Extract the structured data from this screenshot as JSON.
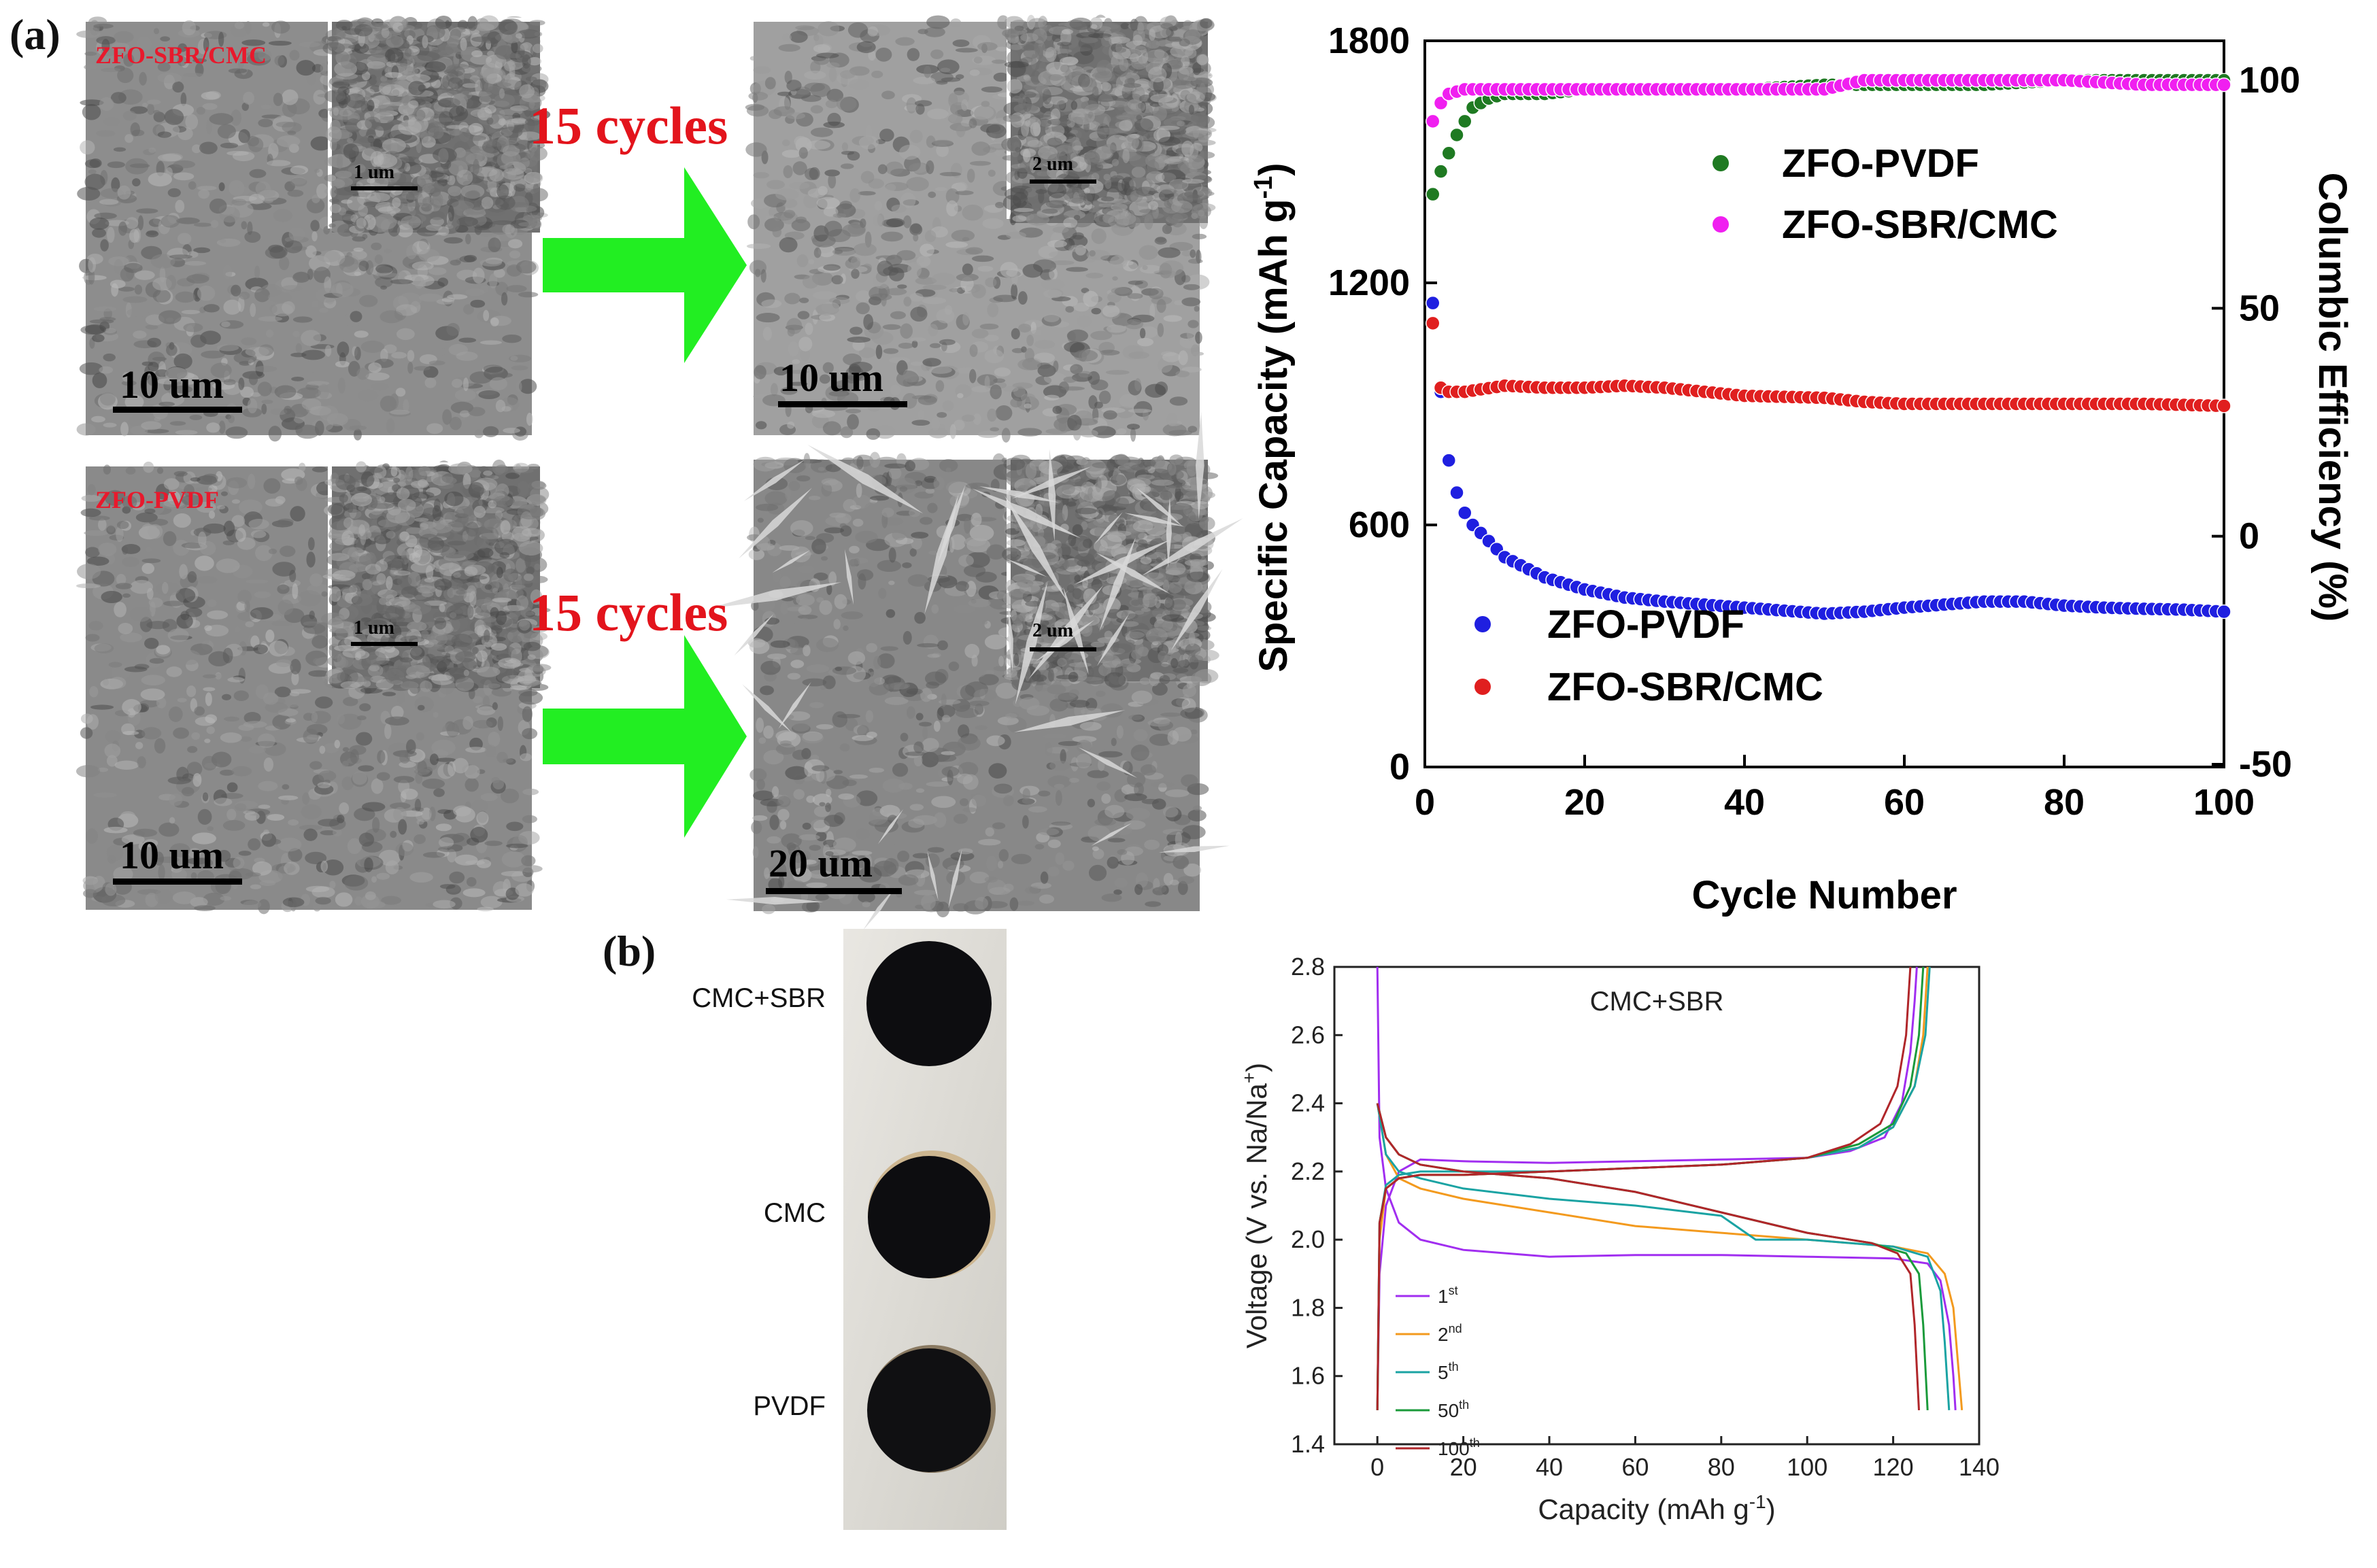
{
  "panel_a_label": "(a)",
  "panel_b_label": "(b)",
  "sem": {
    "top_left": {
      "name": "ZFO-SBR/CMC",
      "scale": "10 um",
      "inset_scale": "1 um"
    },
    "top_right": {
      "scale": "10 um",
      "inset_scale": "2 um"
    },
    "bottom_left": {
      "name": "ZFO-PVDF",
      "scale": "10 um",
      "inset_scale": "1 um"
    },
    "bottom_right": {
      "scale": "20 um",
      "inset_scale": "2 um"
    },
    "arrow_color": "#22ee22",
    "cycles_top": "15 cycles",
    "cycles_bottom": "15 cycles"
  },
  "photo": {
    "labels": [
      "CMC+SBR",
      "CMC",
      "PVDF"
    ]
  },
  "chart_data": [
    {
      "type": "scatter",
      "xlabel": "Cycle Number",
      "ylabel": "Specific Capacity (mAh g",
      "ylabel_sup": "-1",
      "ylabel_end": ")",
      "y2label": "Columbic Efficiency (%)",
      "xlim": [
        0,
        100
      ],
      "ylim": [
        0,
        1800
      ],
      "y2lim": [
        -50,
        110
      ],
      "xticks": [
        0,
        20,
        40,
        60,
        80,
        100
      ],
      "yticks": [
        0,
        600,
        1200,
        1800
      ],
      "y2ticks": [
        -50,
        0,
        50,
        100
      ],
      "legend_upper": [
        "ZFO-PVDF",
        "ZFO-SBR/CMC"
      ],
      "legend_lower": [
        "ZFO-PVDF",
        "ZFO-SBR/CMC"
      ],
      "series": [
        {
          "name": "ZFO-PVDF",
          "axis": "left",
          "color": "#1f1fe0",
          "points": [
            [
              1,
              1150
            ],
            [
              2,
              930
            ],
            [
              3,
              760
            ],
            [
              4,
              680
            ],
            [
              5,
              630
            ],
            [
              6,
              600
            ],
            [
              8,
              560
            ],
            [
              10,
              520
            ],
            [
              15,
              470
            ],
            [
              20,
              440
            ],
            [
              25,
              420
            ],
            [
              30,
              410
            ],
            [
              40,
              395
            ],
            [
              50,
              380
            ],
            [
              55,
              385
            ],
            [
              60,
              395
            ],
            [
              70,
              410
            ],
            [
              75,
              410
            ],
            [
              80,
              400
            ],
            [
              85,
              395
            ],
            [
              90,
              392
            ],
            [
              95,
              390
            ],
            [
              100,
              385
            ]
          ]
        },
        {
          "name": "ZFO-SBR/CMC",
          "axis": "left",
          "color": "#e01f1f",
          "points": [
            [
              1,
              1100
            ],
            [
              2,
              940
            ],
            [
              3,
              930
            ],
            [
              5,
              930
            ],
            [
              10,
              945
            ],
            [
              15,
              940
            ],
            [
              20,
              940
            ],
            [
              25,
              945
            ],
            [
              30,
              940
            ],
            [
              40,
              920
            ],
            [
              50,
              915
            ],
            [
              55,
              905
            ],
            [
              60,
              900
            ],
            [
              70,
              900
            ],
            [
              80,
              900
            ],
            [
              90,
              900
            ],
            [
              100,
              895
            ]
          ]
        },
        {
          "name": "ZFO-PVDF",
          "axis": "right",
          "color": "#1f7a22",
          "points": [
            [
              1,
              75
            ],
            [
              2,
              80
            ],
            [
              3,
              84
            ],
            [
              4,
              88
            ],
            [
              5,
              91
            ],
            [
              6,
              94
            ],
            [
              7,
              95
            ],
            [
              8,
              96
            ],
            [
              10,
              97
            ],
            [
              15,
              97
            ],
            [
              20,
              98
            ],
            [
              30,
              98
            ],
            [
              40,
              98
            ],
            [
              50,
              99
            ],
            [
              60,
              99
            ],
            [
              70,
              99
            ],
            [
              80,
              100
            ],
            [
              90,
              100
            ],
            [
              100,
              100
            ]
          ]
        },
        {
          "name": "ZFO-SBR/CMC",
          "axis": "right",
          "color": "#f01ff0",
          "points": [
            [
              1,
              91
            ],
            [
              2,
              95
            ],
            [
              3,
              97
            ],
            [
              5,
              98
            ],
            [
              10,
              98
            ],
            [
              20,
              98
            ],
            [
              30,
              98
            ],
            [
              40,
              98
            ],
            [
              50,
              98
            ],
            [
              55,
              100
            ],
            [
              60,
              100
            ],
            [
              70,
              100
            ],
            [
              80,
              100
            ],
            [
              90,
              99
            ],
            [
              100,
              99
            ]
          ]
        }
      ]
    },
    {
      "type": "line",
      "title": "CMC+SBR",
      "xlabel": "Capacity (mAh g",
      "xlabel_sup": "-1",
      "xlabel_end": ")",
      "ylabel": "Voltage (V vs. Na/Na",
      "ylabel_sup": "+",
      "ylabel_end": ")",
      "xlim": [
        -10,
        140
      ],
      "ylim": [
        1.4,
        2.8
      ],
      "xticks": [
        0,
        20,
        40,
        60,
        80,
        100,
        120,
        140
      ],
      "yticks": [
        1.4,
        1.6,
        1.8,
        2.0,
        2.2,
        2.4,
        2.6,
        2.8
      ],
      "legend": [
        {
          "base": "1",
          "sup": "st"
        },
        {
          "base": "2",
          "sup": "nd"
        },
        {
          "base": "5",
          "sup": "th"
        },
        {
          "base": "50",
          "sup": "th"
        },
        {
          "base": "100",
          "sup": "th"
        }
      ],
      "series": [
        {
          "name": "1st",
          "color": "#a12ef0",
          "discharge": [
            [
              0,
              2.8
            ],
            [
              0.5,
              2.3
            ],
            [
              2,
              2.15
            ],
            [
              5,
              2.05
            ],
            [
              10,
              2.0
            ],
            [
              20,
              1.97
            ],
            [
              40,
              1.95
            ],
            [
              60,
              1.955
            ],
            [
              80,
              1.955
            ],
            [
              100,
              1.95
            ],
            [
              120,
              1.945
            ],
            [
              128,
              1.93
            ],
            [
              131,
              1.88
            ],
            [
              133,
              1.75
            ],
            [
              134,
              1.6
            ],
            [
              134.5,
              1.5
            ]
          ],
          "charge": [
            [
              0,
              1.5
            ],
            [
              0.5,
              1.9
            ],
            [
              2,
              2.1
            ],
            [
              5,
              2.2
            ],
            [
              10,
              2.235
            ],
            [
              20,
              2.23
            ],
            [
              40,
              2.225
            ],
            [
              60,
              2.23
            ],
            [
              80,
              2.235
            ],
            [
              100,
              2.24
            ],
            [
              110,
              2.26
            ],
            [
              118,
              2.3
            ],
            [
              122,
              2.4
            ],
            [
              124,
              2.55
            ],
            [
              125,
              2.7
            ],
            [
              125.5,
              2.8
            ]
          ]
        },
        {
          "name": "2nd",
          "color": "#f39a1e",
          "discharge": [
            [
              0,
              2.4
            ],
            [
              2,
              2.25
            ],
            [
              5,
              2.18
            ],
            [
              10,
              2.15
            ],
            [
              20,
              2.12
            ],
            [
              40,
              2.08
            ],
            [
              60,
              2.04
            ],
            [
              80,
              2.02
            ],
            [
              100,
              2.0
            ],
            [
              120,
              1.98
            ],
            [
              128,
              1.96
            ],
            [
              132,
              1.9
            ],
            [
              134,
              1.8
            ],
            [
              135,
              1.65
            ],
            [
              136,
              1.5
            ]
          ],
          "charge": [
            [
              0,
              1.5
            ],
            [
              0.5,
              2.0
            ],
            [
              2,
              2.15
            ],
            [
              5,
              2.18
            ],
            [
              10,
              2.19
            ],
            [
              20,
              2.19
            ],
            [
              40,
              2.2
            ],
            [
              60,
              2.21
            ],
            [
              80,
              2.22
            ],
            [
              100,
              2.24
            ],
            [
              112,
              2.27
            ],
            [
              120,
              2.33
            ],
            [
              125,
              2.45
            ],
            [
              127,
              2.6
            ],
            [
              128,
              2.8
            ]
          ]
        },
        {
          "name": "5th",
          "color": "#1aa3a3",
          "discharge": [
            [
              0,
              2.4
            ],
            [
              2,
              2.25
            ],
            [
              5,
              2.2
            ],
            [
              10,
              2.18
            ],
            [
              20,
              2.15
            ],
            [
              40,
              2.12
            ],
            [
              60,
              2.1
            ],
            [
              80,
              2.07
            ],
            [
              88,
              2.0
            ],
            [
              100,
              2.0
            ],
            [
              120,
              1.98
            ],
            [
              128,
              1.95
            ],
            [
              131,
              1.85
            ],
            [
              132,
              1.7
            ],
            [
              133,
              1.5
            ]
          ],
          "charge": [
            [
              0,
              1.5
            ],
            [
              0.5,
              2.05
            ],
            [
              2,
              2.16
            ],
            [
              5,
              2.19
            ],
            [
              10,
              2.2
            ],
            [
              20,
              2.2
            ],
            [
              40,
              2.2
            ],
            [
              60,
              2.21
            ],
            [
              80,
              2.22
            ],
            [
              100,
              2.24
            ],
            [
              112,
              2.27
            ],
            [
              120,
              2.33
            ],
            [
              125,
              2.45
            ],
            [
              127.5,
              2.6
            ],
            [
              128.5,
              2.8
            ]
          ]
        },
        {
          "name": "50th",
          "color": "#1a9a3a",
          "discharge": [
            [
              0,
              2.4
            ],
            [
              2,
              2.3
            ],
            [
              5,
              2.25
            ],
            [
              10,
              2.22
            ],
            [
              20,
              2.2
            ],
            [
              40,
              2.18
            ],
            [
              60,
              2.14
            ],
            [
              80,
              2.08
            ],
            [
              100,
              2.02
            ],
            [
              115,
              1.99
            ],
            [
              123,
              1.96
            ],
            [
              126,
              1.9
            ],
            [
              127,
              1.75
            ],
            [
              128,
              1.5
            ]
          ],
          "charge": [
            [
              0,
              1.5
            ],
            [
              0.5,
              2.05
            ],
            [
              2,
              2.15
            ],
            [
              5,
              2.18
            ],
            [
              10,
              2.19
            ],
            [
              20,
              2.19
            ],
            [
              40,
              2.2
            ],
            [
              60,
              2.21
            ],
            [
              80,
              2.22
            ],
            [
              100,
              2.24
            ],
            [
              112,
              2.28
            ],
            [
              120,
              2.34
            ],
            [
              124,
              2.45
            ],
            [
              126,
              2.6
            ],
            [
              127,
              2.8
            ]
          ]
        },
        {
          "name": "100th",
          "color": "#b0262a",
          "discharge": [
            [
              0,
              2.4
            ],
            [
              2,
              2.3
            ],
            [
              5,
              2.25
            ],
            [
              10,
              2.22
            ],
            [
              20,
              2.2
            ],
            [
              40,
              2.18
            ],
            [
              60,
              2.14
            ],
            [
              80,
              2.08
            ],
            [
              100,
              2.02
            ],
            [
              115,
              1.99
            ],
            [
              121,
              1.96
            ],
            [
              124,
              1.9
            ],
            [
              125,
              1.75
            ],
            [
              126,
              1.5
            ]
          ],
          "charge": [
            [
              0,
              1.5
            ],
            [
              0.5,
              2.05
            ],
            [
              2,
              2.15
            ],
            [
              5,
              2.18
            ],
            [
              10,
              2.19
            ],
            [
              20,
              2.19
            ],
            [
              40,
              2.2
            ],
            [
              60,
              2.21
            ],
            [
              80,
              2.22
            ],
            [
              100,
              2.24
            ],
            [
              110,
              2.28
            ],
            [
              117,
              2.34
            ],
            [
              121,
              2.45
            ],
            [
              123,
              2.6
            ],
            [
              124,
              2.8
            ]
          ]
        }
      ]
    }
  ]
}
